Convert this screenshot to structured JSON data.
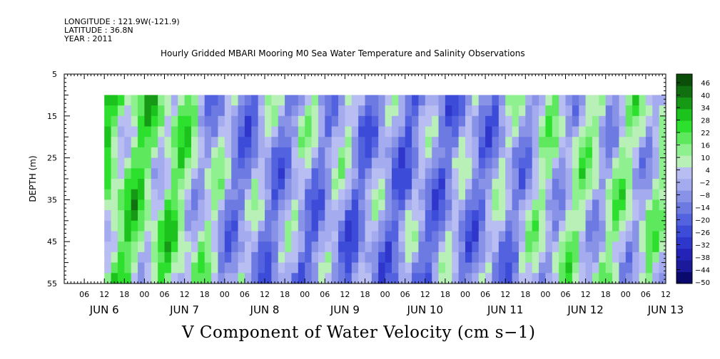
{
  "header": {
    "longitude": "LONGITUDE : 121.9W(-121.9)",
    "latitude": "LATITUDE : 36.8N",
    "year": "YEAR : 2011"
  },
  "chart_data": {
    "type": "heatmap",
    "title": "Hourly Gridded MBARI Mooring M0 Sea Water Temperature and Salinity Observations",
    "bottom_title": "V Component of Water Velocity (cm s−1)",
    "ylabel": "DEPTH (m)",
    "ylim": [
      55,
      5
    ],
    "y_ticks": [
      5,
      15,
      25,
      35,
      45,
      55
    ],
    "xlim_hours": [
      0,
      180
    ],
    "hour_tick_labels": [
      "06",
      "12",
      "18",
      "00",
      "06",
      "12",
      "18",
      "00",
      "06",
      "12",
      "18",
      "00",
      "06",
      "12",
      "18",
      "00",
      "06",
      "12",
      "18",
      "00",
      "06",
      "12",
      "18",
      "00",
      "06",
      "12",
      "18",
      "00",
      "06",
      "12",
      "18",
      "00"
    ],
    "date_labels": [
      "JUN  6",
      "JUN  7",
      "JUN  8",
      "JUN  9",
      "JUN 10",
      "JUN 11",
      "JUN 12",
      "JUN 13"
    ],
    "colorbar": {
      "levels": [
        "46",
        "40",
        "34",
        "28",
        "22",
        "16",
        "10",
        "4",
        "−2",
        "−8",
        "−14",
        "−20",
        "−26",
        "−32",
        "−38",
        "−44",
        "−50"
      ],
      "range": [
        -50,
        52
      ],
      "colors": [
        "#0a0a6e",
        "#1a1a9a",
        "#2323b8",
        "#2e36cc",
        "#3d4cd8",
        "#5362de",
        "#6c7ae2",
        "#8892e6",
        "#a4abee",
        "#b8bdf2",
        "#b8f0b8",
        "#8ef08e",
        "#5ee85e",
        "#2ee02e",
        "#1cc31c",
        "#169a16",
        "#107010",
        "#0a4e0a"
      ]
    },
    "data_depth_range": [
      10,
      55
    ],
    "v_velocity_by_day": {
      "days": [
        "JUN 6 12h",
        "JUN 7",
        "JUN 8",
        "JUN 9",
        "JUN 10",
        "JUN 11",
        "JUN 12"
      ],
      "upper_layer": [
        20,
        16,
        -8,
        2,
        -10,
        -6,
        6
      ],
      "lower_layer": [
        18,
        14,
        -4,
        -12,
        -8,
        -6,
        6
      ]
    }
  }
}
